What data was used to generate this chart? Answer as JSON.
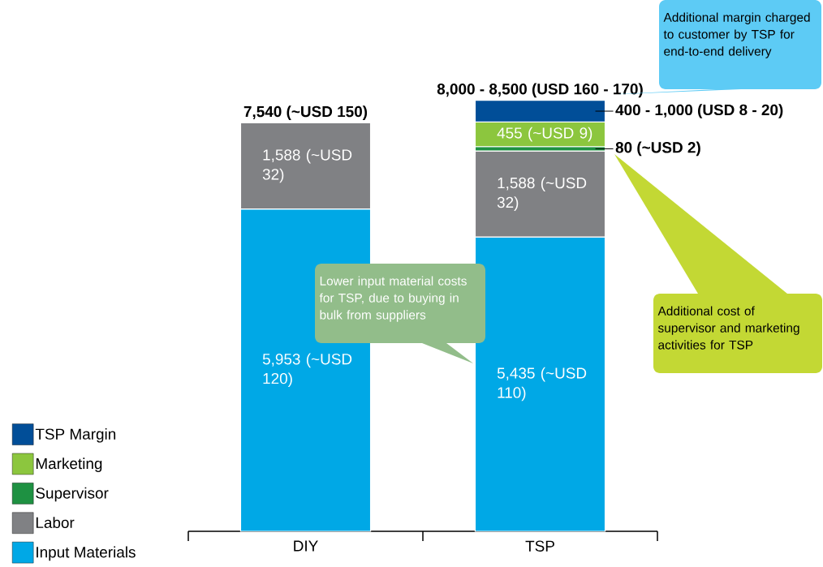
{
  "chart_data": {
    "type": "bar",
    "stacked": true,
    "categories": [
      "DIY",
      "TSP"
    ],
    "series": [
      {
        "name": "Input Materials",
        "color": "#00a8e6",
        "values": [
          5953,
          5435
        ],
        "value_labels": [
          "5,953 (~USD 120)",
          "5,435 (~USD 110)"
        ]
      },
      {
        "name": "Labor",
        "color": "#808184",
        "values": [
          1588,
          1588
        ],
        "value_labels": [
          "1,588 (~USD 32)",
          "1,588 (~USD 32)"
        ]
      },
      {
        "name": "Supervisor",
        "color": "#1e9142",
        "values": [
          null,
          80
        ],
        "value_labels": [
          null,
          "80 (~USD 2)"
        ]
      },
      {
        "name": "Marketing",
        "color": "#8cc63e",
        "values": [
          null,
          455
        ],
        "value_labels": [
          null,
          "455 (~USD 9)"
        ]
      },
      {
        "name": "TSP Margin",
        "color": "#014e98",
        "values": [
          null,
          400
        ],
        "value_labels": [
          null,
          "400 - 1,000 (USD 8 - 20)"
        ]
      }
    ],
    "totals": [
      "7,540 (~USD 150)",
      "8,000 - 8,500 (USD 160 - 170)"
    ],
    "annotations": [
      "Additional margin charged to customer by TSP for end-to-end delivery",
      "Lower input material costs for TSP, due to buying in bulk from suppliers",
      "Additional cost of supervisor and marketing activities for TSP"
    ],
    "legend": "bottom left"
  }
}
